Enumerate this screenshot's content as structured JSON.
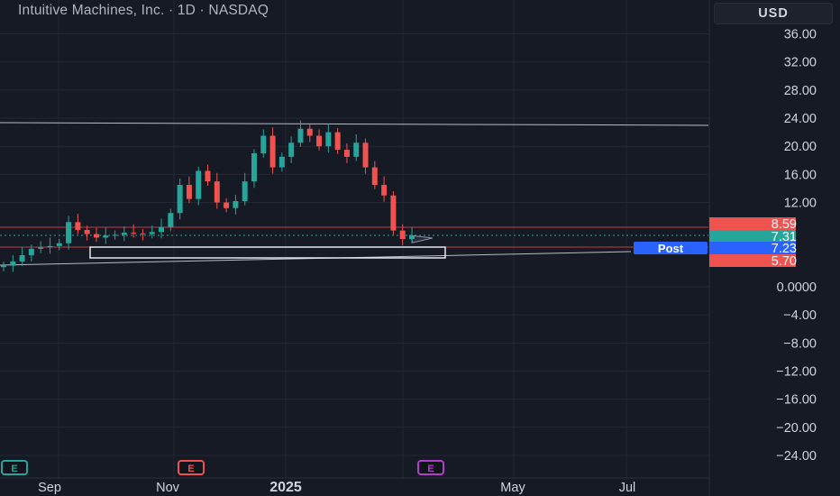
{
  "header": {
    "title": "Intuitive Machines, Inc. · 1D · NASDAQ",
    "currency": "USD"
  },
  "colors": {
    "background": "#161a25",
    "grid": "#232733",
    "up": "#26a69a",
    "down": "#ef5350",
    "axis_text": "#d1d4dc",
    "resistance_line": "#c43a3a",
    "trendline": "#b8bcc6",
    "post_label": "#2962ff",
    "current_label": "#26a69a",
    "earnings_up": "#26a69a",
    "earnings_down": "#ef5350",
    "earnings_upcoming": "#b33ec9"
  },
  "chart_data": {
    "type": "candlestick",
    "symbol": "Intuitive Machines, Inc.",
    "interval": "1D",
    "exchange": "NASDAQ",
    "y_axis": {
      "ticks": [
        "36.00",
        "32.00",
        "28.00",
        "24.00",
        "20.00",
        "16.00",
        "12.00",
        "0.0000",
        "−4.00",
        "−8.00",
        "−12.00",
        "−16.00",
        "−20.00",
        "−24.00"
      ],
      "range": [
        -26,
        38
      ]
    },
    "x_axis": {
      "ticks": [
        "Sep",
        "Nov",
        "2025",
        "May",
        "Jul"
      ],
      "bold_tick": "2025"
    },
    "price_labels": [
      {
        "text": "8.59",
        "type": "line",
        "value": 8.59
      },
      {
        "text": "7.31",
        "type": "current",
        "value": 7.31
      },
      {
        "text": "Post",
        "type": "post_badge",
        "value": 7.23
      },
      {
        "text": "7.23",
        "type": "post",
        "value": 7.23
      },
      {
        "text": "5.70",
        "type": "line",
        "value": 5.7
      }
    ],
    "lines": [
      {
        "kind": "horizontal",
        "value": 8.59,
        "color": "resistance_line"
      },
      {
        "kind": "horizontal",
        "value": 5.7,
        "color": "resistance_line"
      },
      {
        "kind": "horizontal",
        "value": 7.31,
        "style": "dotted",
        "color": "current_label"
      }
    ],
    "series": [
      {
        "name": "",
        "approx_closes": [
          3.0,
          3.6,
          4.5,
          5.4,
          5.6,
          5.8,
          6.2,
          9.2,
          8.1,
          7.5,
          7.0,
          7.3,
          7.4,
          7.7,
          7.6,
          7.5,
          7.8,
          8.5,
          10.5,
          14.5,
          12.5,
          16.5,
          15.0,
          12.0,
          11.2,
          12.2,
          15.0,
          19.0,
          21.5,
          17.0,
          18.5,
          20.5,
          22.5,
          21.5,
          20.0,
          22.0,
          19.5,
          18.5,
          20.5,
          17.0,
          14.5,
          13.0,
          8.0,
          6.8,
          7.3
        ]
      }
    ],
    "markers": [
      {
        "text": "E",
        "type": "earnings",
        "status": "up"
      },
      {
        "text": "E",
        "type": "earnings",
        "status": "down"
      },
      {
        "text": "E",
        "type": "earnings",
        "status": "upcoming"
      }
    ],
    "annotations": [
      {
        "kind": "rectangle",
        "y_range": [
          5.7,
          7.23
        ]
      },
      {
        "kind": "trendline"
      },
      {
        "kind": "trendline"
      },
      {
        "kind": "triangle_pattern"
      }
    ],
    "grid": true
  }
}
